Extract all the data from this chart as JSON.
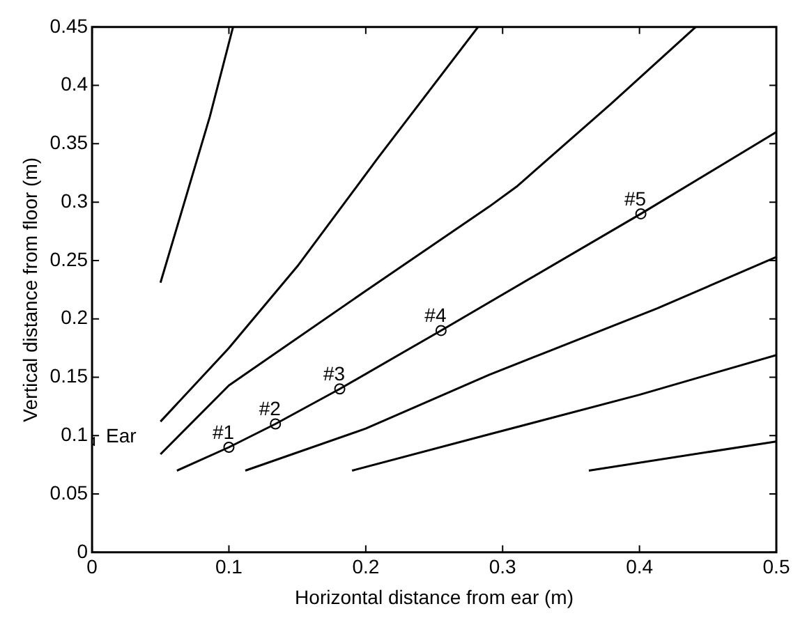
{
  "chart_data": {
    "type": "line",
    "xlabel": "Horizontal distance from ear (m)",
    "ylabel": "Vertical distance from floor (m)",
    "xlim": [
      0,
      0.5
    ],
    "ylim": [
      0,
      0.45
    ],
    "xticks": [
      0,
      0.1,
      0.2,
      0.3,
      0.4,
      0.5
    ],
    "yticks": [
      0,
      0.05,
      0.1,
      0.15,
      0.2,
      0.25,
      0.3,
      0.35,
      0.4,
      0.45
    ],
    "grid": false,
    "legend": false,
    "marker": "none",
    "line_style": "solid",
    "series": [
      {
        "color": "#000000",
        "x": [
          0.05,
          0.086,
          0.103
        ],
        "values": [
          0.231,
          0.373,
          0.45
        ]
      },
      {
        "color": "#000000",
        "x": [
          0.05,
          0.1,
          0.15,
          0.209,
          0.282
        ],
        "values": [
          0.112,
          0.175,
          0.245,
          0.338,
          0.45
        ]
      },
      {
        "color": "#000000",
        "x": [
          0.05,
          0.1,
          0.2,
          0.29,
          0.311,
          0.379,
          0.441
        ],
        "values": [
          0.084,
          0.143,
          0.224,
          0.296,
          0.314,
          0.384,
          0.45
        ]
      },
      {
        "color": "#000000",
        "x": [
          0.062,
          0.1,
          0.134,
          0.181,
          0.255,
          0.401,
          0.5
        ],
        "values": [
          0.07,
          0.09,
          0.11,
          0.14,
          0.19,
          0.29,
          0.36
        ]
      },
      {
        "color": "#000000",
        "x": [
          0.112,
          0.2,
          0.29,
          0.413,
          0.5
        ],
        "values": [
          0.07,
          0.106,
          0.152,
          0.209,
          0.253
        ]
      },
      {
        "color": "#000000",
        "x": [
          0.19,
          0.29,
          0.4,
          0.5
        ],
        "values": [
          0.07,
          0.101,
          0.135,
          0.169
        ]
      },
      {
        "color": "#000000",
        "x": [
          0.363,
          0.5
        ],
        "values": [
          0.07,
          0.095
        ]
      },
      {
        "type": "scatter",
        "marker": "circle",
        "color": "#000000",
        "x": [
          0.1,
          0.134,
          0.181,
          0.255,
          0.401
        ],
        "values": [
          0.09,
          0.11,
          0.14,
          0.19,
          0.29
        ]
      },
      {
        "type": "scatter",
        "marker": "triangle",
        "color": "#000000",
        "x": [
          0
        ],
        "values": [
          0.095
        ]
      }
    ],
    "annotations": [
      {
        "text": "Ear",
        "x": 0,
        "y": 0.095
      },
      {
        "text": "#1",
        "x": 0.1,
        "y": 0.09
      },
      {
        "text": "#2",
        "x": 0.134,
        "y": 0.11
      },
      {
        "text": "#3",
        "x": 0.181,
        "y": 0.14
      },
      {
        "text": "#4",
        "x": 0.255,
        "y": 0.19
      },
      {
        "text": "#5",
        "x": 0.401,
        "y": 0.29
      }
    ]
  }
}
